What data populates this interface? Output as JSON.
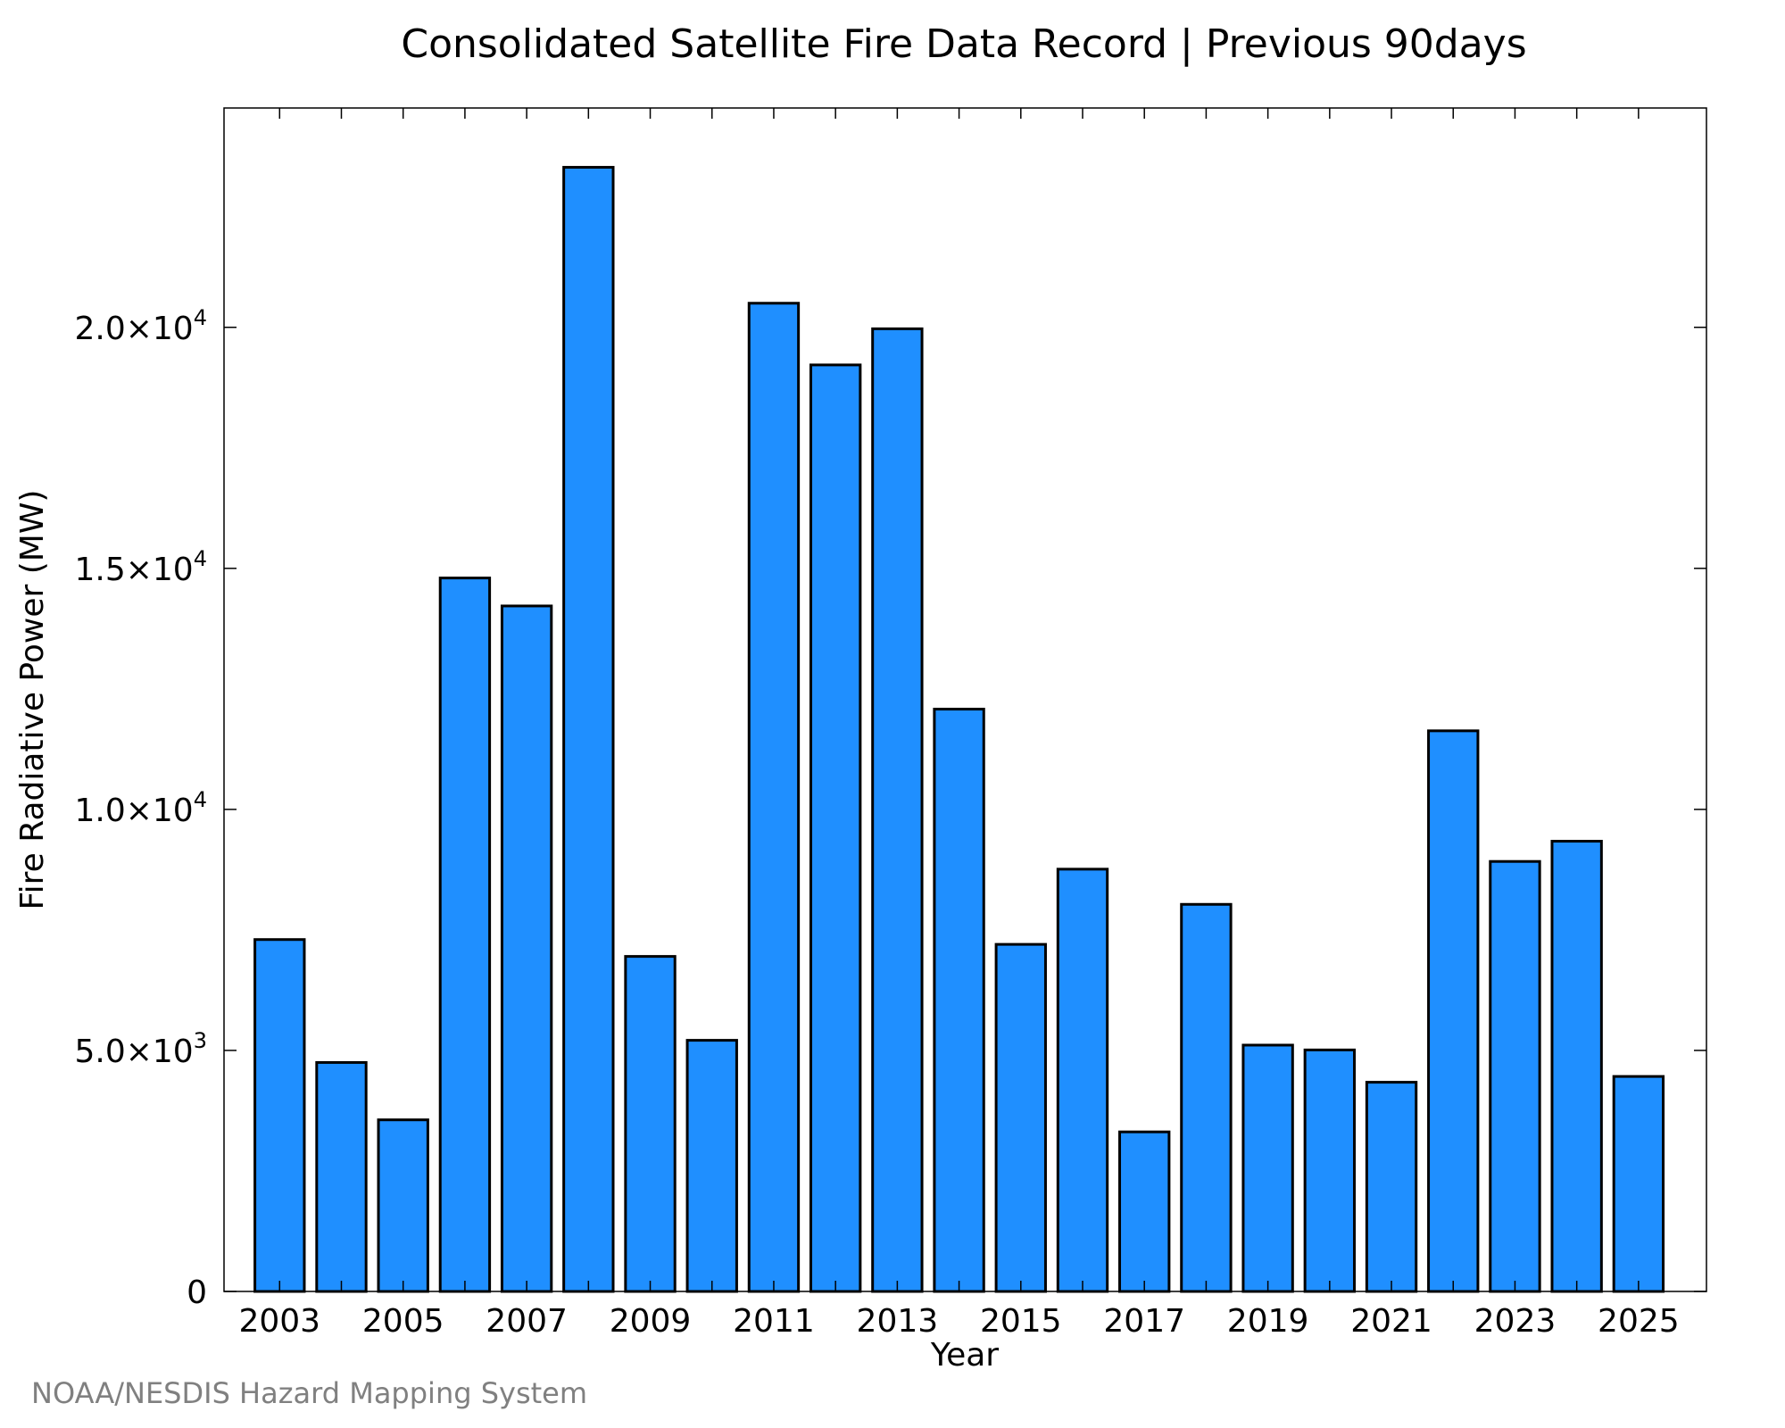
{
  "chart_data": {
    "type": "bar",
    "title": "Consolidated Satellite Fire Data Record | Previous 90days",
    "xlabel": "Year",
    "ylabel": "Fire Radiative Power (MW)",
    "categories": [
      "2003",
      "2004",
      "2005",
      "2006",
      "2007",
      "2008",
      "2009",
      "2010",
      "2011",
      "2012",
      "2013",
      "2014",
      "2015",
      "2016",
      "2017",
      "2018",
      "2019",
      "2020",
      "2021",
      "2022",
      "2023",
      "2024",
      "2025"
    ],
    "values": [
      7300,
      4750,
      3560,
      14800,
      14220,
      23320,
      6950,
      5210,
      20500,
      19220,
      19970,
      12080,
      7200,
      8760,
      3310,
      8030,
      5110,
      5010,
      4340,
      11630,
      8920,
      9340,
      4460
    ],
    "x_tick_labels": [
      "2003",
      "2005",
      "2007",
      "2009",
      "2011",
      "2013",
      "2015",
      "2017",
      "2019",
      "2021",
      "2023",
      "2025"
    ],
    "y_ticks": [
      {
        "value": 0,
        "mantissa": "0",
        "exponent": ""
      },
      {
        "value": 5000,
        "mantissa": "5.0×10",
        "exponent": "3"
      },
      {
        "value": 10000,
        "mantissa": "1.0×10",
        "exponent": "4"
      },
      {
        "value": 15000,
        "mantissa": "1.5×10",
        "exponent": "4"
      },
      {
        "value": 20000,
        "mantissa": "2.0×10",
        "exponent": "4"
      }
    ],
    "ylim": [
      0,
      24550
    ],
    "xlim": [
      2002.1,
      2026.1
    ],
    "grid": false,
    "bar_color": "#1f8fff"
  },
  "footer": {
    "credit": "NOAA/NESDIS Hazard Mapping System"
  }
}
